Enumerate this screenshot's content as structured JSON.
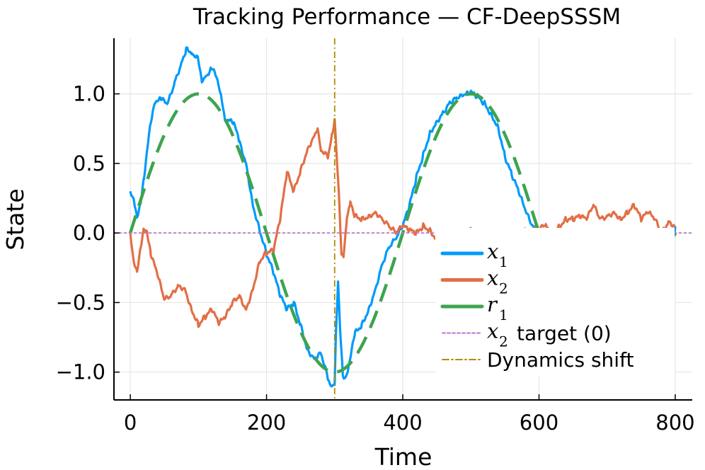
{
  "chart_data": {
    "type": "line",
    "title": "Tracking Performance — CF-DeepSSSM",
    "xlabel": "Time",
    "ylabel": "State",
    "xlim": [
      -24,
      825
    ],
    "ylim": [
      -1.2,
      1.4
    ],
    "xticks": [
      0,
      200,
      400,
      600,
      800
    ],
    "xtick_labels": [
      "0",
      "200",
      "400",
      "600",
      "800"
    ],
    "yticks": [
      -1.0,
      -0.5,
      0.0,
      0.5,
      1.0
    ],
    "ytick_labels": [
      "−1.0",
      "−0.5",
      "0.0",
      "0.5",
      "1.0"
    ],
    "grid": true,
    "legend_position": "bottom-right",
    "series": [
      {
        "name": "x1",
        "legend_var": "x",
        "legend_sub": "1",
        "color": "#009AFA",
        "style": "solid",
        "x": [
          0,
          5,
          10,
          15,
          20,
          30,
          37,
          45,
          55,
          65,
          75,
          82,
          90,
          100,
          105,
          112,
          118,
          125,
          133,
          139,
          152,
          160,
          170,
          180,
          190,
          200,
          210,
          220,
          230,
          240,
          250,
          260,
          270,
          280,
          290,
          296,
          300,
          302,
          305,
          308,
          312,
          316,
          322,
          330,
          340,
          350,
          360,
          370,
          380,
          390,
          400,
          410,
          420,
          430,
          440,
          450,
          460,
          470,
          480,
          490,
          500,
          510,
          520,
          530,
          540,
          550,
          560,
          570,
          580,
          590,
          600,
          620,
          650,
          680,
          700,
          720,
          750,
          780,
          795,
          800
        ],
        "y": [
          0.3,
          0.25,
          0.12,
          0.22,
          0.4,
          0.8,
          0.95,
          0.96,
          0.93,
          1.08,
          1.22,
          1.32,
          1.3,
          1.25,
          1.1,
          1.13,
          1.18,
          1.15,
          0.98,
          0.82,
          0.79,
          0.66,
          0.5,
          0.2,
          0.02,
          -0.15,
          -0.28,
          -0.45,
          -0.55,
          -0.5,
          -0.66,
          -0.84,
          -0.9,
          -0.86,
          -1.04,
          -1.12,
          -1.08,
          -0.7,
          -0.34,
          -0.7,
          -1.02,
          -1.05,
          -0.92,
          -0.72,
          -0.66,
          -0.55,
          -0.4,
          -0.22,
          -0.1,
          -0.04,
          0.05,
          0.2,
          0.4,
          0.56,
          0.72,
          0.8,
          0.87,
          0.94,
          0.97,
          0.99,
          1.01,
          0.98,
          0.93,
          0.85,
          0.76,
          0.55,
          0.42,
          0.3,
          0.16,
          0.05,
          0.0,
          -0.35,
          -0.75,
          -1.0,
          -1.0,
          -0.95,
          -0.72,
          -0.35,
          -0.12,
          0.05
        ]
      },
      {
        "name": "x2",
        "legend_var": "x",
        "legend_sub": "2",
        "color": "#E26F46",
        "style": "solid",
        "x": [
          0,
          5,
          10,
          15,
          20,
          25,
          30,
          40,
          50,
          60,
          70,
          80,
          90,
          100,
          110,
          120,
          130,
          140,
          150,
          160,
          170,
          180,
          190,
          200,
          210,
          220,
          230,
          240,
          250,
          260,
          270,
          275,
          280,
          290,
          297,
          300,
          303,
          307,
          310,
          313,
          318,
          323,
          330,
          340,
          350,
          360,
          370,
          380,
          390,
          400,
          410,
          420,
          430,
          440,
          450,
          460,
          480,
          500,
          530,
          560,
          590,
          610,
          620,
          630,
          640,
          650,
          660,
          670,
          680,
          690,
          700,
          710,
          720,
          730,
          740,
          750,
          760,
          770,
          780,
          790,
          800
        ],
        "y": [
          0.0,
          -0.2,
          -0.27,
          -0.1,
          0.04,
          0.0,
          -0.15,
          -0.3,
          -0.48,
          -0.45,
          -0.38,
          -0.4,
          -0.55,
          -0.66,
          -0.6,
          -0.55,
          -0.65,
          -0.6,
          -0.5,
          -0.45,
          -0.55,
          -0.4,
          -0.2,
          -0.14,
          -0.13,
          0.1,
          0.44,
          0.3,
          0.45,
          0.6,
          0.7,
          0.76,
          0.6,
          0.55,
          0.72,
          0.83,
          0.55,
          0.2,
          -0.15,
          -0.18,
          0.1,
          0.22,
          0.12,
          0.1,
          0.12,
          0.15,
          0.1,
          0.05,
          0.0,
          0.05,
          0.02,
          0.0,
          0.05,
          0.02,
          -0.05,
          -0.05,
          0.0,
          0.02,
          -0.02,
          0.0,
          0.02,
          0.05,
          0.0,
          0.05,
          0.1,
          0.1,
          0.12,
          0.1,
          0.2,
          0.1,
          0.12,
          0.15,
          0.1,
          0.15,
          0.2,
          0.1,
          0.15,
          0.1,
          0.0,
          0.08,
          0.05
        ]
      },
      {
        "name": "r1",
        "legend_var": "r",
        "legend_sub": "1",
        "color": "#3EA44E",
        "style": "dashed",
        "function": "sin(2*pi*t/400)",
        "x_range": [
          0,
          800
        ]
      },
      {
        "name": "x2 target (0)",
        "legend_var": "x",
        "legend_sub": "2",
        "legend_text": "target (0)",
        "color": "#C271D2",
        "style": "dotted",
        "hline": 0
      },
      {
        "name": "Dynamics shift",
        "legend_text": "Dynamics shift",
        "color": "#AF8D00",
        "style": "dashdot",
        "vline": 300
      }
    ]
  }
}
